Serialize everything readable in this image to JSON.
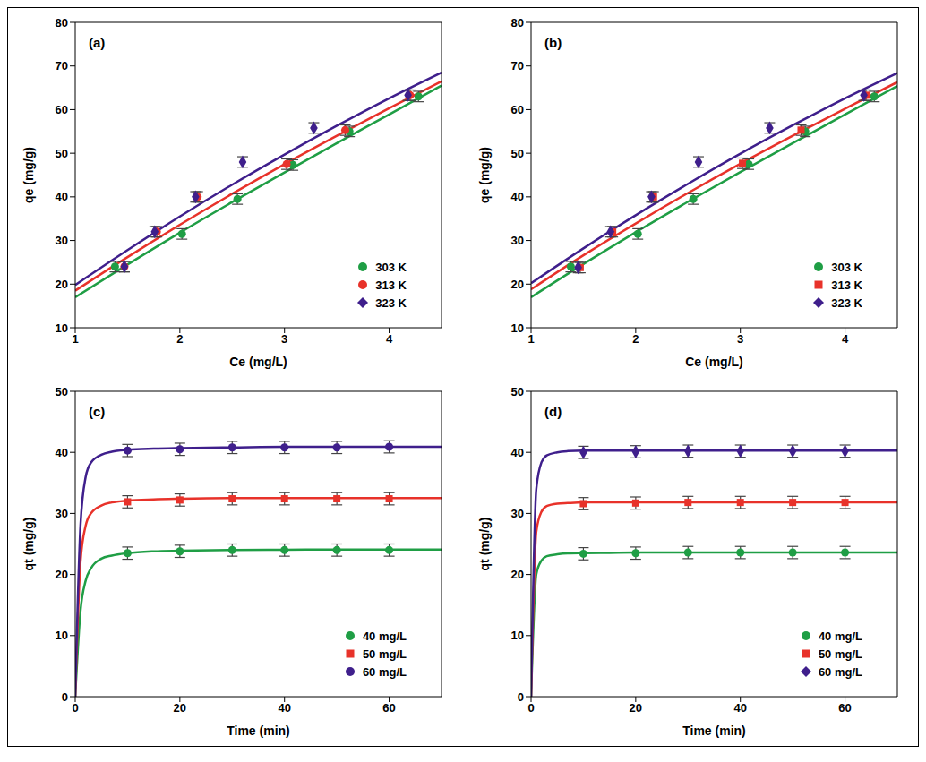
{
  "chart_data": [
    {
      "type": "scatter",
      "title": "(a)",
      "x_label": "Ce (mg/L)",
      "y_label": "qe (mg/g)",
      "xlim": [
        1,
        4.5
      ],
      "xticks": [
        1,
        2,
        3,
        4
      ],
      "ylim": [
        10,
        80
      ],
      "yticks": [
        10,
        20,
        30,
        40,
        50,
        60,
        70,
        80
      ],
      "grid": false,
      "legend": "lower right",
      "series": [
        {
          "name": "303 K",
          "color": "#1f9e45",
          "marker": "circle",
          "x": [
            1.38,
            2.02,
            2.55,
            3.08,
            3.62,
            4.28
          ],
          "values": [
            24,
            31.5,
            39.5,
            47.3,
            55,
            63
          ],
          "error": [
            1.2,
            1.2,
            1.2,
            1.2,
            1.2,
            1.2
          ],
          "fit_x": [
            1,
            1.5,
            2,
            2.5,
            3,
            3.5,
            4,
            4.5
          ],
          "fit_values": [
            17,
            24.5,
            31.8,
            38.8,
            45.6,
            52.3,
            58.9,
            65.5
          ]
        },
        {
          "name": "313 K",
          "color": "#e8322a",
          "marker": "circle",
          "x": [
            1.47,
            1.78,
            2.17,
            3.02,
            3.58,
            4.2
          ],
          "values": [
            24,
            32,
            40,
            47.5,
            55.3,
            63.3
          ],
          "error": [
            1.2,
            1.2,
            1.2,
            1.2,
            1.2,
            1.2
          ],
          "fit_x": [
            1,
            1.5,
            2,
            2.5,
            3,
            3.5,
            4,
            4.5
          ],
          "fit_values": [
            18.5,
            26.2,
            33.6,
            40.7,
            47.5,
            54,
            60.3,
            66.5
          ]
        },
        {
          "name": "323 K",
          "color": "#3f1f8c",
          "marker": "diamond",
          "x": [
            1.47,
            1.76,
            2.15,
            2.6,
            3.28,
            4.18
          ],
          "values": [
            24,
            32,
            40,
            48,
            55.8,
            63.3
          ],
          "error": [
            1.2,
            1.2,
            1.2,
            1.2,
            1.2,
            1.2
          ],
          "fit_x": [
            1,
            1.5,
            2,
            2.5,
            3,
            3.5,
            4,
            4.5
          ],
          "fit_values": [
            19.8,
            27.8,
            35.5,
            42.8,
            49.7,
            56.3,
            62.6,
            68.5
          ]
        }
      ]
    },
    {
      "type": "scatter",
      "title": "(b)",
      "x_label": "Ce (mg/L)",
      "y_label": "qe (mg/g)",
      "xlim": [
        1,
        4.5
      ],
      "xticks": [
        1,
        2,
        3,
        4
      ],
      "ylim": [
        10,
        80
      ],
      "yticks": [
        10,
        20,
        30,
        40,
        50,
        60,
        70,
        80
      ],
      "grid": false,
      "legend": "lower right",
      "series": [
        {
          "name": "303 K",
          "color": "#1f9e45",
          "marker": "circle",
          "x": [
            1.38,
            2.02,
            2.55,
            3.08,
            3.62,
            4.28
          ],
          "values": [
            24,
            31.5,
            39.5,
            47.5,
            55,
            63
          ],
          "error": [
            1.2,
            1.2,
            1.2,
            1.2,
            1.2,
            1.2
          ],
          "fit_x": [
            1,
            1.5,
            2,
            2.5,
            3,
            3.5,
            4,
            4.5
          ],
          "fit_values": [
            17,
            24.6,
            31.9,
            38.9,
            45.7,
            52.3,
            58.9,
            65.4
          ]
        },
        {
          "name": "313 K",
          "color": "#e8322a",
          "marker": "square",
          "x": [
            1.47,
            1.78,
            2.17,
            3.02,
            3.58,
            4.2
          ],
          "values": [
            23.8,
            32,
            40,
            47.7,
            55.3,
            63.3
          ],
          "error": [
            1.2,
            1.2,
            1.2,
            1.2,
            1.2,
            1.2
          ],
          "fit_x": [
            1,
            1.5,
            2,
            2.5,
            3,
            3.5,
            4,
            4.5
          ],
          "fit_values": [
            18.8,
            26.6,
            33.9,
            40.9,
            47.6,
            54,
            60.2,
            66.3
          ]
        },
        {
          "name": "323 K",
          "color": "#3f1f8c",
          "marker": "diamond",
          "x": [
            1.45,
            1.76,
            2.15,
            2.6,
            3.28,
            4.18
          ],
          "values": [
            23.8,
            32,
            40,
            48,
            55.8,
            63.3
          ],
          "error": [
            1.2,
            1.2,
            1.2,
            1.2,
            1.2,
            1.2
          ],
          "fit_x": [
            1,
            1.5,
            2,
            2.5,
            3,
            3.5,
            4,
            4.5
          ],
          "fit_values": [
            20.2,
            28.2,
            35.8,
            43,
            49.9,
            56.4,
            62.6,
            68.4
          ]
        }
      ]
    },
    {
      "type": "scatter",
      "title": "(c)",
      "x_label": "Time (min)",
      "y_label": "qt (mg/g)",
      "xlim": [
        0,
        70
      ],
      "xticks": [
        0,
        20,
        40,
        60
      ],
      "ylim": [
        0,
        50
      ],
      "yticks": [
        0,
        10,
        20,
        30,
        40,
        50
      ],
      "grid": false,
      "legend": "lower right",
      "series": [
        {
          "name": "40 mg/L",
          "color": "#1f9e45",
          "marker": "circle",
          "x": [
            10,
            20,
            30,
            40,
            50,
            60
          ],
          "values": [
            23.5,
            23.8,
            24,
            24,
            24,
            24
          ],
          "error": [
            1,
            1,
            1,
            1,
            1,
            1
          ],
          "fit_x": [
            0,
            1,
            2,
            3,
            5,
            7,
            10,
            15,
            20,
            30,
            40,
            50,
            60,
            70
          ],
          "fit_values": [
            0,
            14,
            19,
            21,
            22.6,
            23.1,
            23.5,
            23.8,
            23.9,
            24,
            24.05,
            24.1,
            24.1,
            24.1
          ]
        },
        {
          "name": "50 mg/L",
          "color": "#e8322a",
          "marker": "square",
          "x": [
            10,
            20,
            30,
            40,
            50,
            60
          ],
          "values": [
            31.9,
            32.2,
            32.4,
            32.4,
            32.4,
            32.4
          ],
          "error": [
            1,
            1,
            1,
            1,
            1,
            1
          ],
          "fit_x": [
            0,
            1,
            2,
            3,
            5,
            7,
            10,
            15,
            20,
            30,
            40,
            50,
            60,
            70
          ],
          "fit_values": [
            0,
            22,
            28,
            30,
            31.3,
            31.8,
            32.1,
            32.3,
            32.4,
            32.5,
            32.5,
            32.5,
            32.5,
            32.5
          ]
        },
        {
          "name": "60 mg/L",
          "color": "#3f1f8c",
          "marker": "circle",
          "x": [
            10,
            20,
            30,
            40,
            50,
            60
          ],
          "values": [
            40.3,
            40.5,
            40.8,
            40.8,
            40.8,
            40.9
          ],
          "error": [
            1,
            1,
            1,
            1,
            1,
            1
          ],
          "fit_x": [
            0,
            1,
            2,
            3,
            5,
            7,
            10,
            15,
            20,
            30,
            40,
            50,
            60,
            70
          ],
          "fit_values": [
            0,
            28,
            36,
            38.3,
            39.6,
            40.1,
            40.4,
            40.6,
            40.7,
            40.8,
            40.9,
            40.9,
            40.9,
            40.9
          ]
        }
      ]
    },
    {
      "type": "scatter",
      "title": "(d)",
      "x_label": "Time (min)",
      "y_label": "qt (mg/g)",
      "xlim": [
        0,
        70
      ],
      "xticks": [
        0,
        20,
        40,
        60
      ],
      "ylim": [
        0,
        50
      ],
      "yticks": [
        0,
        10,
        20,
        30,
        40,
        50
      ],
      "grid": false,
      "legend": "lower right",
      "series": [
        {
          "name": "40 mg/L",
          "color": "#1f9e45",
          "marker": "circle",
          "x": [
            10,
            20,
            30,
            40,
            50,
            60
          ],
          "values": [
            23.4,
            23.5,
            23.6,
            23.6,
            23.6,
            23.6
          ],
          "error": [
            1,
            1,
            1,
            1,
            1,
            1
          ],
          "fit_x": [
            0,
            1,
            2,
            3,
            5,
            7,
            10,
            15,
            20,
            30,
            40,
            50,
            60,
            70
          ],
          "fit_values": [
            0,
            20,
            22.3,
            23,
            23.3,
            23.45,
            23.5,
            23.55,
            23.6,
            23.6,
            23.6,
            23.6,
            23.6,
            23.6
          ]
        },
        {
          "name": "50 mg/L",
          "color": "#e8322a",
          "marker": "square",
          "x": [
            10,
            20,
            30,
            40,
            50,
            60
          ],
          "values": [
            31.6,
            31.7,
            31.8,
            31.8,
            31.8,
            31.8
          ],
          "error": [
            1,
            1,
            1,
            1,
            1,
            1
          ],
          "fit_x": [
            0,
            1,
            2,
            3,
            5,
            7,
            10,
            15,
            20,
            30,
            40,
            50,
            60,
            70
          ],
          "fit_values": [
            0,
            27,
            30.3,
            31.2,
            31.6,
            31.7,
            31.8,
            31.8,
            31.8,
            31.8,
            31.8,
            31.8,
            31.8,
            31.8
          ]
        },
        {
          "name": "60 mg/L",
          "color": "#3f1f8c",
          "marker": "diamond",
          "x": [
            10,
            20,
            30,
            40,
            50,
            60
          ],
          "values": [
            40,
            40.1,
            40.2,
            40.2,
            40.2,
            40.2
          ],
          "error": [
            1,
            1,
            1,
            1,
            1,
            1
          ],
          "fit_x": [
            0,
            1,
            2,
            3,
            5,
            7,
            10,
            15,
            20,
            30,
            40,
            50,
            60,
            70
          ],
          "fit_values": [
            0,
            34,
            38.4,
            39.5,
            40,
            40.2,
            40.3,
            40.3,
            40.3,
            40.3,
            40.3,
            40.3,
            40.3,
            40.3
          ]
        }
      ]
    }
  ]
}
